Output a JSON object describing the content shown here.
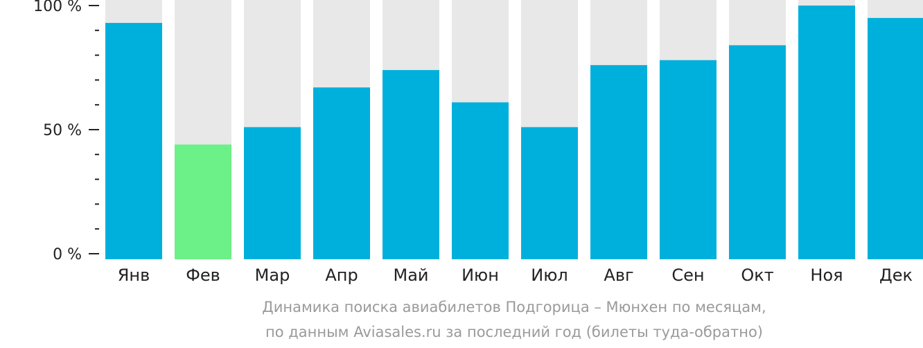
{
  "chart_data": {
    "type": "bar",
    "categories": [
      "Янв",
      "Фев",
      "Мар",
      "Апр",
      "Май",
      "Июн",
      "Июл",
      "Авг",
      "Сен",
      "Окт",
      "Ноя",
      "Дек"
    ],
    "values": [
      93,
      44,
      51,
      67,
      74,
      61,
      51,
      76,
      78,
      84,
      100,
      95
    ],
    "ylim": [
      0,
      100
    ],
    "yticks": [
      "0 %",
      "50 %",
      "100 %"
    ],
    "highlight_index": 1,
    "grid": false,
    "title": ""
  },
  "colors": {
    "bar": "#00b0dc",
    "highlight": "#6cf088",
    "track": "#e8e8e8",
    "axis": "#222222",
    "caption": "#9a9a9a"
  },
  "caption": {
    "line1": "Динамика поиска авиабилетов Подгорица – Мюнхен по месяцам,",
    "line2": "по данным Aviasales.ru за последний год (билеты туда-обратно)"
  }
}
